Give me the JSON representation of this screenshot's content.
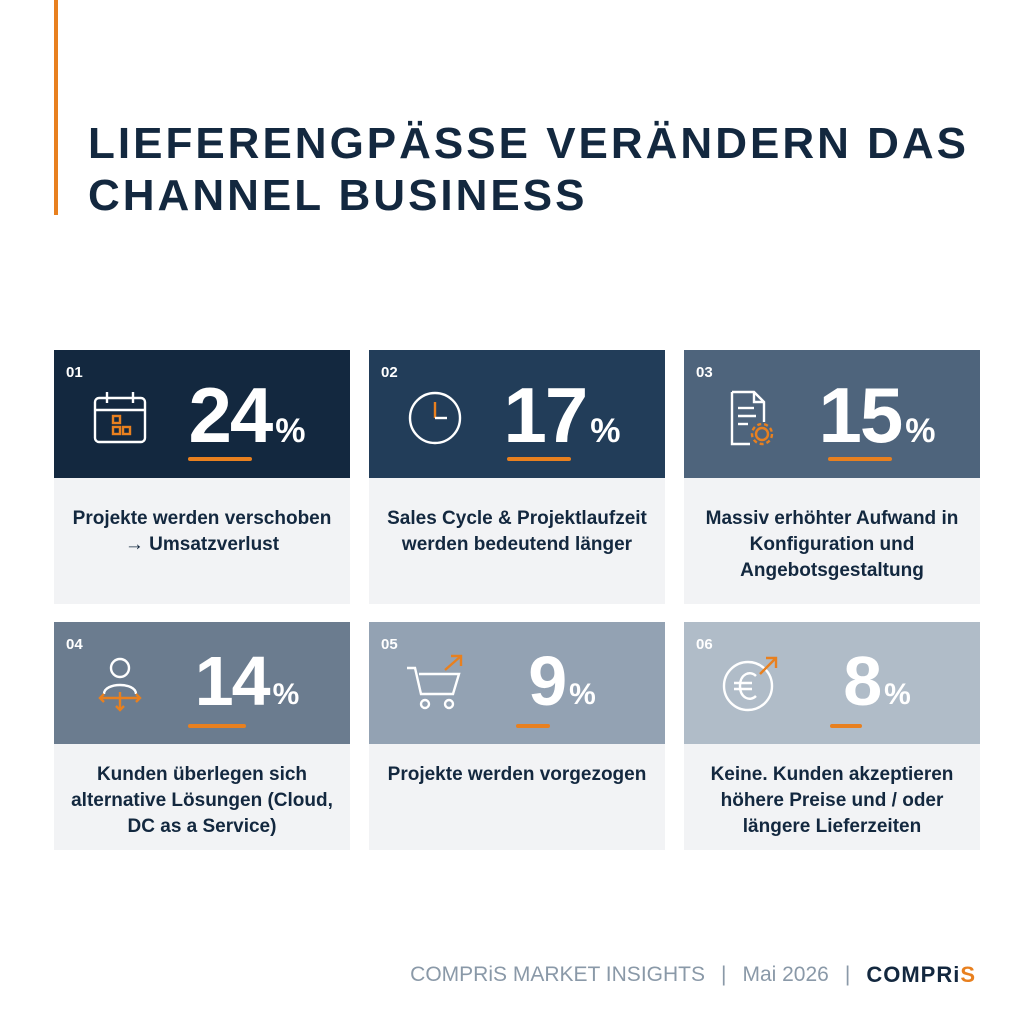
{
  "title": "LIEFERENGPÄSSE VERÄNDERN DAS CHANNEL BUSINESS",
  "colors": {
    "accent": "#e8801f",
    "card1": "#13283f",
    "card2": "#223d59",
    "card3": "#4e647c",
    "card4": "#6b7c8f",
    "card5": "#93a2b3",
    "card6": "#b0bcc8"
  },
  "cards": [
    {
      "number": "01",
      "value": "24",
      "unit": "%",
      "icon": "calendar-icon",
      "text": "Projekte werden verschoben\n→ Umsatzverlust"
    },
    {
      "number": "02",
      "value": "17",
      "unit": "%",
      "icon": "clock-icon",
      "text": "Sales Cycle & Projektlaufzeit werden bedeutend länger"
    },
    {
      "number": "03",
      "value": "15",
      "unit": "%",
      "icon": "document-gear-icon",
      "text": "Massiv erhöhter Aufwand in Konfiguration und Angebotsgestaltung"
    },
    {
      "number": "04",
      "value": "14",
      "unit": "%",
      "icon": "person-arrows-icon",
      "text": "Kunden überlegen sich alternative Lösungen (Cloud, DC as a Service)"
    },
    {
      "number": "05",
      "value": "9",
      "unit": "%",
      "icon": "cart-arrow-icon",
      "text": "Projekte werden vorgezogen"
    },
    {
      "number": "06",
      "value": "8",
      "unit": "%",
      "icon": "euro-arrow-icon",
      "text": "Keine. Kunden akzeptieren höhere Preise und / oder längere Lieferzeiten"
    }
  ],
  "footer": {
    "insights": "COMPRiS MARKET INSIGHTS",
    "separator": "|",
    "date": "Mai 2026",
    "logo_main": "COMPRi",
    "logo_end": "S"
  }
}
